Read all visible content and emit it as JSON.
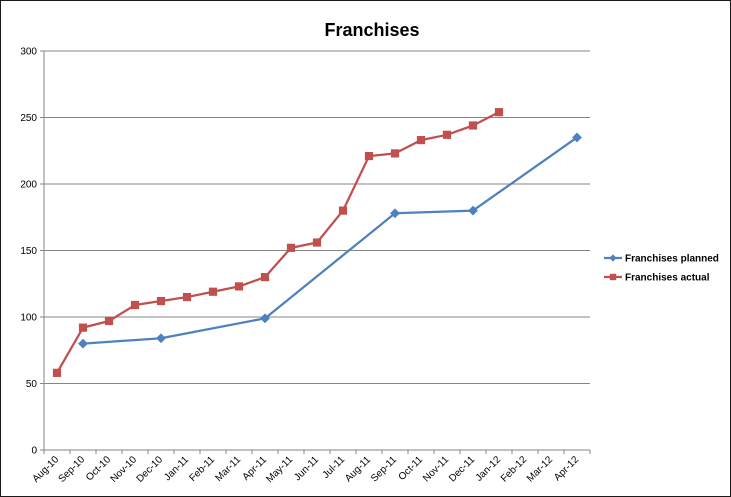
{
  "chart_data": {
    "type": "line",
    "title": "Franchises",
    "xlabel": "",
    "ylabel": "",
    "ylim": [
      0,
      300
    ],
    "yticks": [
      0,
      50,
      100,
      150,
      200,
      250,
      300
    ],
    "grid": true,
    "legend": "right",
    "categories": [
      "Aug-10",
      "Sep-10",
      "Oct-10",
      "Nov-10",
      "Dec-10",
      "Jan-11",
      "Feb-11",
      "Mar-11",
      "Apr-11",
      "May-11",
      "Jun-11",
      "Jul-11",
      "Aug-11",
      "Sep-11",
      "Oct-11",
      "Nov-11",
      "Dec-11",
      "Jan-12",
      "Feb-12",
      "Mar-12",
      "Apr-12"
    ],
    "series": [
      {
        "name": "Franchises planned",
        "color": "#4f81bd",
        "marker": "diamond",
        "points": [
          [
            1,
            80
          ],
          [
            4,
            84
          ],
          [
            8,
            99
          ],
          [
            13,
            178
          ],
          [
            16,
            180
          ],
          [
            20,
            235
          ]
        ]
      },
      {
        "name": "Franchises actual",
        "color": "#c0504d",
        "marker": "square",
        "points": [
          [
            0,
            58
          ],
          [
            1,
            92
          ],
          [
            2,
            97
          ],
          [
            3,
            109
          ],
          [
            4,
            112
          ],
          [
            5,
            115
          ],
          [
            6,
            119
          ],
          [
            7,
            123
          ],
          [
            8,
            130
          ],
          [
            9,
            152
          ],
          [
            10,
            156
          ],
          [
            11,
            180
          ],
          [
            12,
            221
          ],
          [
            13,
            223
          ],
          [
            14,
            233
          ],
          [
            15,
            237
          ],
          [
            16,
            244
          ],
          [
            17,
            254
          ]
        ]
      }
    ]
  }
}
